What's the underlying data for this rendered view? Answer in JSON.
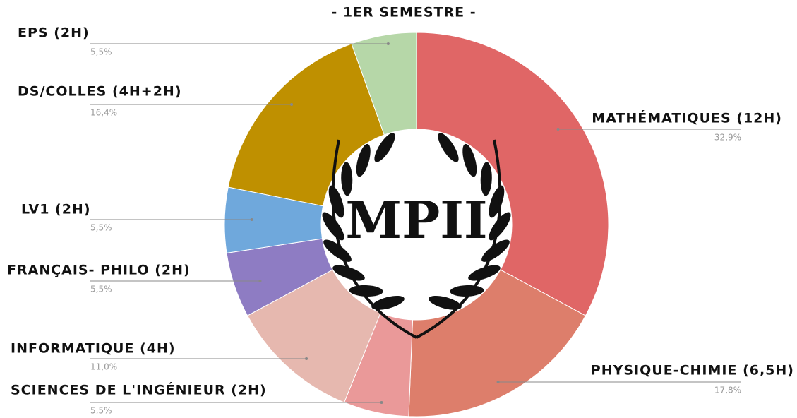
{
  "chart_data": {
    "type": "pie",
    "donut": true,
    "title": "- 1ER SEMESTRE -",
    "center_text": "MPII",
    "categories": [
      "MATHÉMATIQUES (12H)",
      "PHYSIQUE-CHIMIE (6,5H)",
      "SCIENCES DE L'INGÉNIEUR (2H)",
      "INFORMATIQUE (4H)",
      "FRANÇAIS- PHILO (2H)",
      "LV1 (2H)",
      "DS/COLLES  (4H+2H)",
      "EPS (2H)"
    ],
    "values": [
      32.9,
      17.8,
      5.5,
      11.0,
      5.5,
      5.5,
      16.4,
      5.5
    ],
    "value_labels": [
      "32,9%",
      "17,8%",
      "5,5%",
      "11,0%",
      "5,5%",
      "5,5%",
      "16,4%",
      "5,5%"
    ],
    "colors": [
      "#e06666",
      "#dd7e6b",
      "#ea9999",
      "#e6b8af",
      "#8e7cc3",
      "#6fa8dc",
      "#bf9000",
      "#b6d7a8"
    ]
  }
}
